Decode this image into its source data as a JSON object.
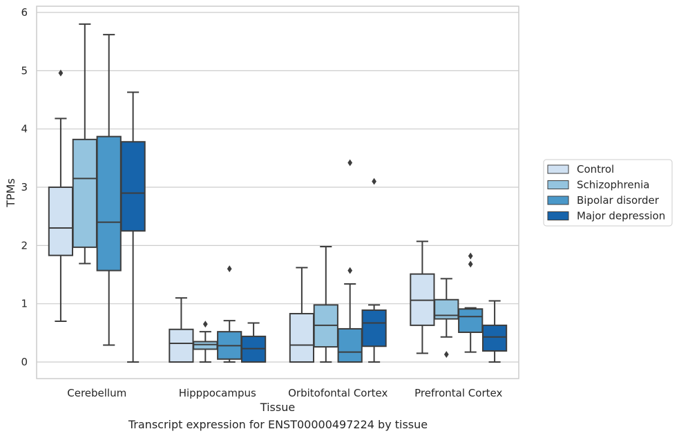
{
  "chart_data": {
    "type": "boxplot",
    "xlabel": "Tissue",
    "ylabel": "TPMs",
    "caption": "Transcript expression for ENST00000497224 by tissue",
    "ylim": [
      -0.28,
      6.1
    ],
    "yticks": [
      0,
      1,
      2,
      3,
      4,
      5,
      6
    ],
    "grid": "horizontal",
    "legend_position": "right",
    "categories": [
      "Cerebellum",
      "Hipppocampus",
      "Orbitofontal Cortex",
      "Prefrontal Cortex"
    ],
    "series": [
      {
        "name": "Control",
        "color": "#d0e1f2",
        "boxes": [
          {
            "whisker_low": 0.7,
            "q1": 1.83,
            "median": 2.3,
            "q3": 3.0,
            "whisker_high": 4.18,
            "outliers": [
              4.96
            ]
          },
          {
            "whisker_low": 0.0,
            "q1": 0.0,
            "median": 0.32,
            "q3": 0.56,
            "whisker_high": 1.1,
            "outliers": []
          },
          {
            "whisker_low": 0.0,
            "q1": 0.0,
            "median": 0.29,
            "q3": 0.83,
            "whisker_high": 1.62,
            "outliers": []
          },
          {
            "whisker_low": 0.15,
            "q1": 0.63,
            "median": 1.06,
            "q3": 1.51,
            "whisker_high": 2.07,
            "outliers": []
          }
        ]
      },
      {
        "name": "Schizophrenia",
        "color": "#94c4df",
        "boxes": [
          {
            "whisker_low": 1.69,
            "q1": 1.97,
            "median": 3.15,
            "q3": 3.82,
            "whisker_high": 5.8,
            "outliers": []
          },
          {
            "whisker_low": 0.0,
            "q1": 0.22,
            "median": 0.3,
            "q3": 0.35,
            "whisker_high": 0.52,
            "outliers": [
              0.65
            ]
          },
          {
            "whisker_low": 0.0,
            "q1": 0.26,
            "median": 0.63,
            "q3": 0.98,
            "whisker_high": 1.98,
            "outliers": []
          },
          {
            "whisker_low": 0.43,
            "q1": 0.74,
            "median": 0.8,
            "q3": 1.07,
            "whisker_high": 1.43,
            "outliers": [
              0.13
            ]
          }
        ]
      },
      {
        "name": "Bipolar disorder",
        "color": "#4a98c9",
        "boxes": [
          {
            "whisker_low": 0.29,
            "q1": 1.57,
            "median": 2.4,
            "q3": 3.87,
            "whisker_high": 5.62,
            "outliers": []
          },
          {
            "whisker_low": 0.0,
            "q1": 0.05,
            "median": 0.28,
            "q3": 0.52,
            "whisker_high": 0.71,
            "outliers": [
              1.6
            ]
          },
          {
            "whisker_low": 0.0,
            "q1": 0.0,
            "median": 0.17,
            "q3": 0.57,
            "whisker_high": 1.34,
            "outliers": [
              1.57,
              3.42
            ]
          },
          {
            "whisker_low": 0.17,
            "q1": 0.51,
            "median": 0.78,
            "q3": 0.91,
            "whisker_high": 0.93,
            "outliers": [
              1.68,
              1.82
            ]
          }
        ]
      },
      {
        "name": "Major depression",
        "color": "#1764ab",
        "boxes": [
          {
            "whisker_low": 0.0,
            "q1": 2.25,
            "median": 2.9,
            "q3": 3.78,
            "whisker_high": 4.63,
            "outliers": []
          },
          {
            "whisker_low": 0.0,
            "q1": 0.0,
            "median": 0.23,
            "q3": 0.44,
            "whisker_high": 0.67,
            "outliers": []
          },
          {
            "whisker_low": 0.0,
            "q1": 0.27,
            "median": 0.67,
            "q3": 0.89,
            "whisker_high": 0.98,
            "outliers": [
              3.1
            ]
          },
          {
            "whisker_low": 0.0,
            "q1": 0.19,
            "median": 0.43,
            "q3": 0.63,
            "whisker_high": 1.05,
            "outliers": []
          }
        ]
      }
    ]
  }
}
